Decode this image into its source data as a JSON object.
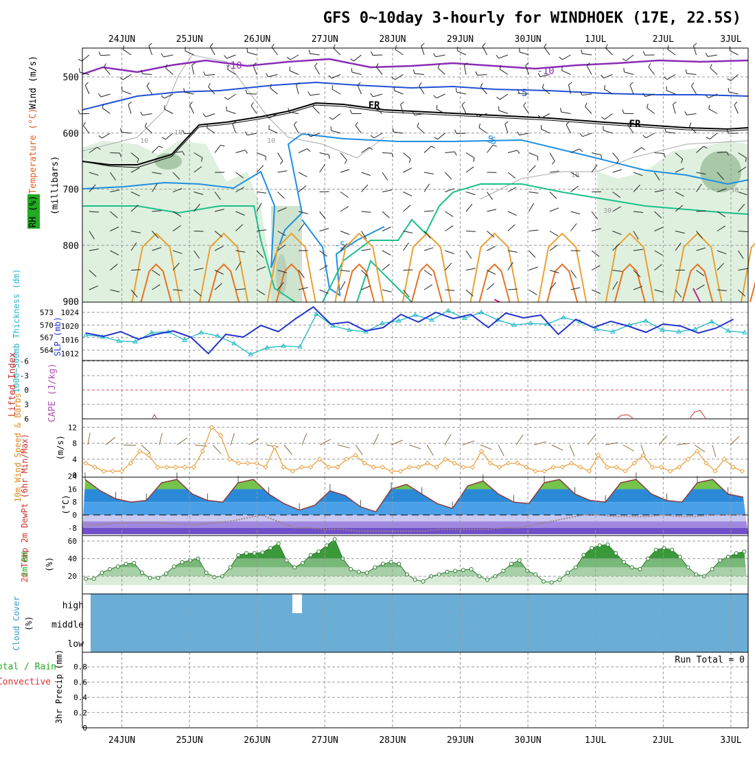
{
  "title": "GFS 0~10day 3-hourly for WINDHOEK (17E, 22.5S)",
  "date_labels": [
    "24JUN",
    "25JUN",
    "26JUN",
    "27JUN",
    "28JUN",
    "29JUN",
    "30JUN",
    "1JUL",
    "2JUL",
    "3JUL"
  ],
  "colors": {
    "frame": "#000000",
    "grid": "#999999",
    "purple": "#8a2bb5",
    "blue": "#1f4fd6",
    "lightblue": "#1e8fe0",
    "green": "#1abf8a",
    "orange": "#e8a030",
    "darkorange": "#e87020",
    "magenta": "#cc1a8a",
    "rhfill": "#dff0df",
    "rhdark": "#a8c8a8",
    "cyan": "#20b8c8",
    "slp": "#2233cc",
    "windline": "#e8a040",
    "barb": "#8b6b4a",
    "cloud": "#6aaed6",
    "rhgreen": "#5cb85c"
  },
  "panels": {
    "sounding": {
      "ylabel_parts": [
        "Wind (m/s)",
        "Temperature (°C)",
        "RH (%)",
        "(millibars)"
      ],
      "ticks": [
        "500",
        "600",
        "700",
        "800",
        "900"
      ],
      "contour_labels": [
        "-10",
        "-10",
        "-5",
        "-5",
        "-5",
        "FR",
        "FR",
        "5",
        "10",
        "10",
        "10",
        "10",
        "30",
        "30"
      ]
    },
    "thickness": {
      "ylabel_left": "1000~500mb Thickness (dm)",
      "ylabel_right": "SLP (mb)",
      "left_ticks": [
        "573",
        "570",
        "567",
        "564"
      ],
      "right_ticks": [
        "1024",
        "1020",
        "1016",
        "1012"
      ]
    },
    "stability": {
      "ylabel_left": "Lifted Index",
      "ylabel_right": "CAPE (J/kg)",
      "ticks": [
        "-6",
        "-3",
        "0",
        "3",
        "6"
      ]
    },
    "wind10m": {
      "ylabel": "10m Wind Speed & Barbs",
      "unit": "(m/s)",
      "ticks": [
        "12",
        "8",
        "4",
        "0"
      ]
    },
    "temp2m": {
      "ylabel": "2m Temp 2m DewPt (6hr Min/Max)",
      "unit": "(°C)",
      "ticks": [
        "24",
        "16",
        "8",
        "0",
        "-8"
      ]
    },
    "rh2m": {
      "ylabel": "2m RH",
      "unit": "(%)",
      "ticks": [
        "60",
        "40",
        "20"
      ]
    },
    "cloud": {
      "ylabel": "Cloud Cover",
      "unit": "(%)",
      "levels": [
        "high",
        "middle",
        "low"
      ]
    },
    "precip": {
      "ylabel_a": "Total / Rain",
      "ylabel_b": "Convective",
      "ylabel_c": "3hr Precip (mm)",
      "ticks": [
        "0.8",
        "0.6",
        "0.4",
        "0.2",
        "0"
      ],
      "run_total": "Run Total = 0"
    }
  },
  "chart_data": [
    {
      "type": "line",
      "name": "1000-500mb Thickness",
      "units": "dm",
      "x_start": "23JUN 12Z",
      "step_hours": 12,
      "values": [
        567.6,
        567.2,
        566.2,
        566.0,
        568.2,
        568.4,
        566.4,
        568.2,
        567.4,
        565.6,
        563.0,
        564.6,
        565.0,
        564.8,
        572.6,
        569.8,
        568.8,
        568.4,
        570.4,
        571.0,
        572.4,
        571.2,
        573.4,
        571.6,
        573.0,
        571.2,
        570.0,
        570.4,
        570.2,
        571.8,
        570.8,
        569.0,
        568.4,
        570.0,
        571.0,
        568.8,
        568.4,
        569.0,
        570.8,
        568.6,
        568.2
      ],
      "ylim": [
        562,
        574
      ]
    },
    {
      "type": "line",
      "name": "SLP",
      "units": "mb",
      "x_start": "23JUN 12Z",
      "step_hours": 12,
      "values": [
        1018.0,
        1017.0,
        1018.4,
        1016.2,
        1017.6,
        1018.6,
        1016.8,
        1012.0,
        1017.6,
        1016.8,
        1020.2,
        1018.4,
        1022.2,
        1025.6,
        1020.6,
        1021.2,
        1018.6,
        1019.6,
        1023.4,
        1021.2,
        1024.0,
        1022.2,
        1023.4,
        1019.6,
        1023.8,
        1022.4,
        1023.2,
        1017.6,
        1022.0,
        1019.6,
        1021.4,
        1020.0,
        1018.2,
        1020.6,
        1020.0,
        1018.0,
        1019.4,
        1022.0
      ],
      "ylim": [
        1010,
        1026
      ]
    },
    {
      "type": "line",
      "name": "Lifted Index",
      "ticks_y": [
        -6,
        -3,
        0,
        3,
        6
      ],
      "ylim": [
        -6,
        6
      ],
      "reference_line": 0
    },
    {
      "type": "line",
      "name": "10m Wind Speed",
      "units": "m/s",
      "x_start": "23JUN 12Z",
      "step_hours": 6,
      "values": [
        3,
        2,
        1,
        1,
        1,
        3,
        6,
        5,
        2,
        2,
        2,
        2,
        2,
        6,
        12,
        10,
        4,
        3,
        3,
        3,
        2,
        7,
        2,
        1,
        2,
        2,
        4,
        2,
        2,
        4,
        5,
        3,
        2,
        2,
        1,
        1,
        2,
        2,
        3,
        2,
        4,
        3,
        2,
        2,
        6,
        3,
        2,
        3,
        3,
        2,
        1,
        1,
        2,
        2,
        3,
        2,
        1,
        5,
        2,
        2,
        1,
        3,
        5,
        2,
        2,
        1,
        2,
        4,
        6,
        3,
        1,
        4,
        2,
        1
      ],
      "ylim": [
        0,
        14
      ]
    },
    {
      "type": "area",
      "name": "2m Temp",
      "units": "°C",
      "x_start": "23JUN 12Z",
      "step_hours": 6,
      "values": [
        22,
        15,
        10,
        8,
        9,
        20,
        22,
        13,
        9,
        8,
        20,
        22,
        13,
        7,
        3,
        6,
        15,
        12,
        5,
        2,
        16,
        19,
        13,
        7,
        4,
        18,
        21,
        13,
        8,
        7,
        20,
        22,
        13,
        9,
        8,
        20,
        22,
        13,
        9,
        8,
        20,
        22,
        13,
        11
      ],
      "ylim": [
        -12,
        26
      ]
    },
    {
      "type": "line",
      "name": "2m DewPt",
      "units": "°C",
      "x_start": "23JUN 12Z",
      "step_hours": 6,
      "values": [
        -6,
        -6,
        -5,
        -5,
        -5,
        -5,
        -6,
        -6,
        -5,
        -4,
        -2,
        0,
        -4,
        -8,
        -8,
        -9,
        -9,
        -10,
        -10,
        -10,
        -10,
        -10,
        -9,
        -9,
        -9,
        -9,
        -8,
        -8,
        -6,
        -4,
        -2,
        0,
        0,
        -1,
        -1,
        -1,
        0,
        -1,
        -1,
        0,
        0,
        0
      ],
      "ylim": [
        -12,
        26
      ]
    },
    {
      "type": "area",
      "name": "2m RH",
      "units": "%",
      "x_start": "23JUN 12Z",
      "step_hours": 3,
      "values": [
        17,
        17,
        24,
        28,
        31,
        34,
        35,
        24,
        18,
        18,
        23,
        31,
        36,
        38,
        40,
        24,
        19,
        20,
        30,
        44,
        46,
        46,
        47,
        52,
        57,
        38,
        30,
        35,
        44,
        48,
        55,
        62,
        40,
        28,
        25,
        24,
        30,
        34,
        36,
        34,
        22,
        16,
        14,
        20,
        22,
        25,
        26,
        27,
        28,
        20,
        16,
        20,
        26,
        34,
        38,
        26,
        22,
        14,
        13,
        16,
        24,
        30,
        44,
        52,
        55,
        56,
        46,
        36,
        30,
        28,
        40,
        50,
        52,
        50,
        42,
        30,
        22,
        20,
        28,
        38,
        42,
        46,
        48
      ],
      "ylim": [
        10,
        65
      ]
    },
    {
      "type": "heatmap",
      "name": "Cloud Cover",
      "units": "%",
      "levels": [
        "high",
        "middle",
        "low"
      ],
      "note_gap": "high cloud gap near 26JUN 18Z"
    },
    {
      "type": "bar",
      "name": "3hr Precip",
      "units": "mm",
      "ylim": [
        0,
        1
      ],
      "values": []
    }
  ]
}
